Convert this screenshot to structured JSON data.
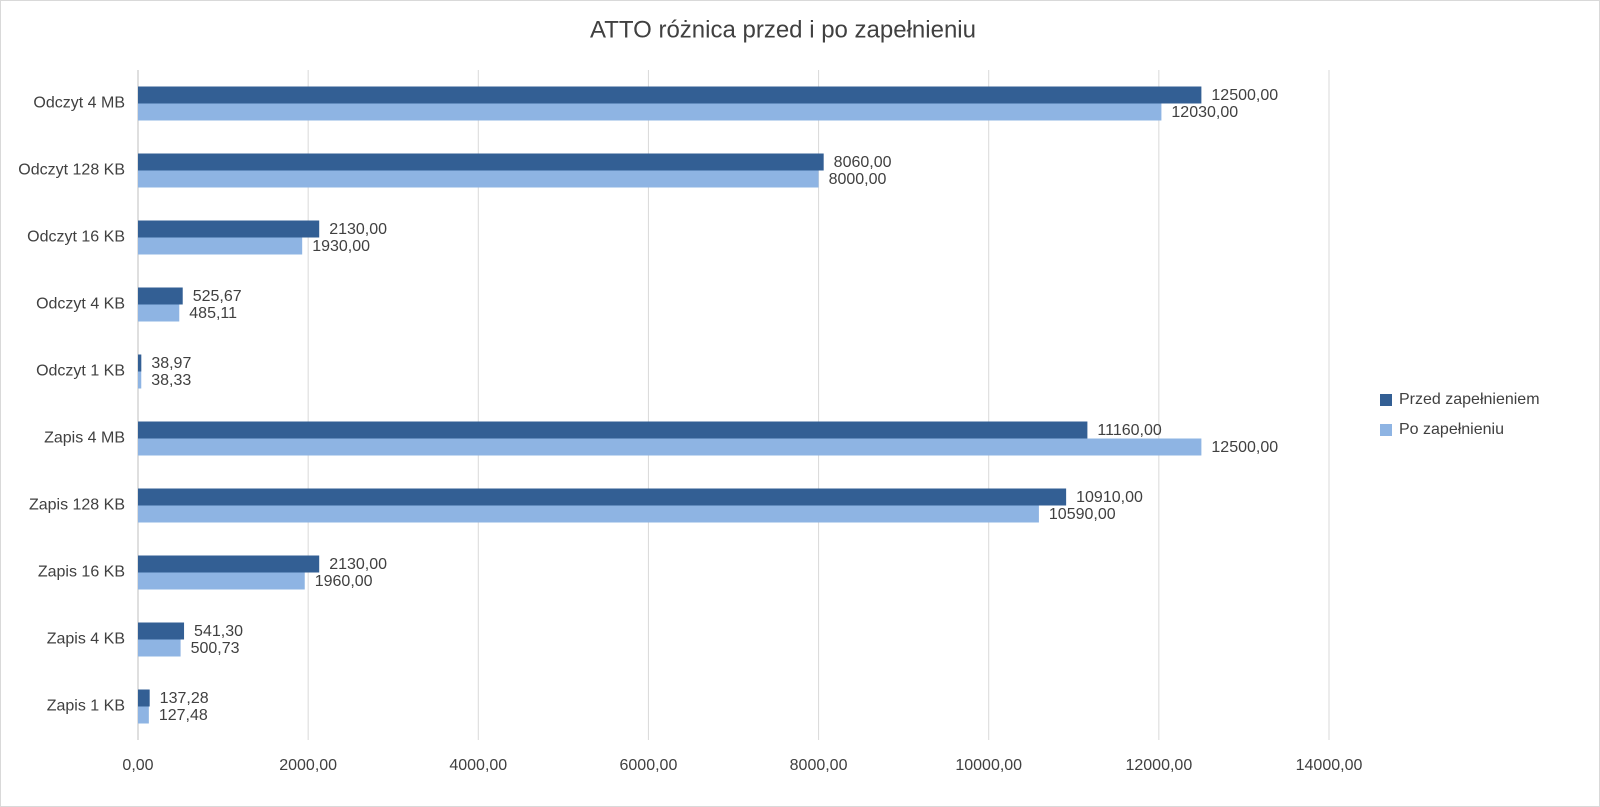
{
  "chart_data": {
    "type": "hbar",
    "title": "ATTO różnica przed i po zapełnieniu",
    "categories": [
      "Odczyt 4 MB",
      "Odczyt 128 KB",
      "Odczyt 16 KB",
      "Odczyt 4 KB",
      "Odczyt 1 KB",
      "Zapis 4 MB",
      "Zapis 128 KB",
      "Zapis 16 KB",
      "Zapis 4 KB",
      "Zapis 1 KB"
    ],
    "series": [
      {
        "name": "Przed zapełnieniem",
        "color": "#335f94",
        "values": [
          12500,
          8060,
          2130,
          525.67,
          38.97,
          11160,
          10910,
          2130,
          541.3,
          137.28
        ],
        "value_labels": [
          "12500,00",
          "8060,00",
          "2130,00",
          "525,67",
          "38,97",
          "11160,00",
          "10910,00",
          "2130,00",
          "541,30",
          "137,28"
        ]
      },
      {
        "name": "Po zapełnieniu",
        "color": "#8eb4e3",
        "values": [
          12030,
          8000,
          1930,
          485.11,
          38.33,
          12500,
          10590,
          1960,
          500.73,
          127.48
        ],
        "value_labels": [
          "12030,00",
          "8000,00",
          "1930,00",
          "485,11",
          "38,33",
          "12500,00",
          "10590,00",
          "1960,00",
          "500,73",
          "127,48"
        ]
      }
    ],
    "xlim": [
      0,
      14000
    ],
    "xticks": [
      {
        "value": 0,
        "label": "0,00"
      },
      {
        "value": 2000,
        "label": "2000,00"
      },
      {
        "value": 4000,
        "label": "4000,00"
      },
      {
        "value": 6000,
        "label": "6000,00"
      },
      {
        "value": 8000,
        "label": "8000,00"
      },
      {
        "value": 10000,
        "label": "10000,00"
      },
      {
        "value": 12000,
        "label": "12000,00"
      },
      {
        "value": 14000,
        "label": "14000,00"
      }
    ],
    "grid": true,
    "legend": "right"
  }
}
